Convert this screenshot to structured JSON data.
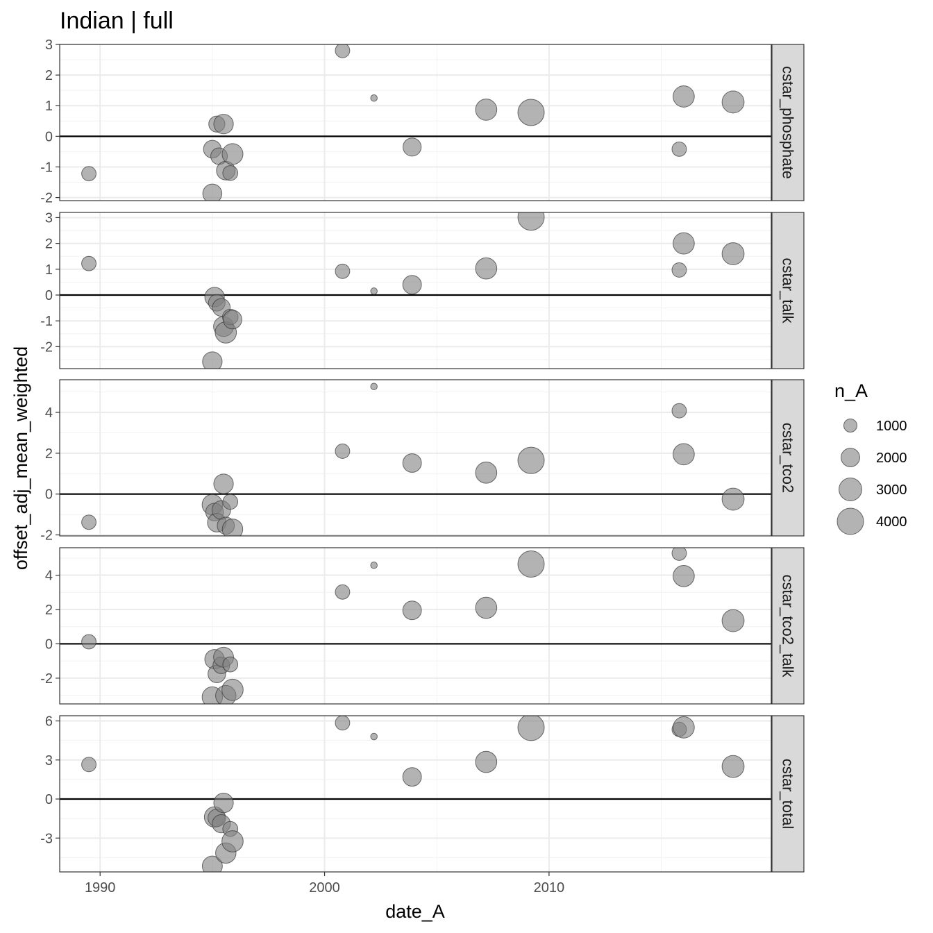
{
  "chart_data": {
    "type": "scatter",
    "title": "Indian | full",
    "xlabel": "date_A",
    "ylabel": "offset_adj_mean_weighted",
    "size_variable": "n_A",
    "xlim": [
      1988.2,
      2019.9
    ],
    "x_ticks": [
      1990,
      2000,
      2010
    ],
    "reference_line_y": 0,
    "point_color": "#808080",
    "point_border": "#333333",
    "point_opacity": 0.6,
    "legend": {
      "title": "n_A",
      "position": "right",
      "entries": [
        {
          "label": "1000",
          "value": 1000
        },
        {
          "label": "2000",
          "value": 2000
        },
        {
          "label": "3000",
          "value": 3000
        },
        {
          "label": "4000",
          "value": 4000
        }
      ]
    },
    "panels": [
      {
        "label": "cstar_phosphate",
        "ylim": [
          -2.1,
          3.0
        ],
        "y_ticks": [
          -2,
          -1,
          0,
          1,
          2,
          3
        ],
        "points": [
          {
            "x": 1989.5,
            "y": -1.22,
            "n": 1200
          },
          {
            "x": 1995.0,
            "y": -1.87,
            "n": 2100
          },
          {
            "x": 1995.0,
            "y": -0.42,
            "n": 1800
          },
          {
            "x": 1995.2,
            "y": 0.4,
            "n": 1500
          },
          {
            "x": 1995.3,
            "y": -0.65,
            "n": 1600
          },
          {
            "x": 1995.5,
            "y": 0.4,
            "n": 2200
          },
          {
            "x": 1995.6,
            "y": -1.12,
            "n": 2000
          },
          {
            "x": 1995.8,
            "y": -1.2,
            "n": 1300
          },
          {
            "x": 1995.9,
            "y": -0.58,
            "n": 2500
          },
          {
            "x": 2000.8,
            "y": 2.8,
            "n": 1200
          },
          {
            "x": 2002.2,
            "y": 1.25,
            "n": 250
          },
          {
            "x": 2003.9,
            "y": -0.35,
            "n": 1900
          },
          {
            "x": 2007.2,
            "y": 0.87,
            "n": 2600
          },
          {
            "x": 2009.2,
            "y": 0.78,
            "n": 4000
          },
          {
            "x": 2015.8,
            "y": -0.42,
            "n": 1200
          },
          {
            "x": 2016.0,
            "y": 1.3,
            "n": 2600
          },
          {
            "x": 2018.2,
            "y": 1.12,
            "n": 2800
          }
        ]
      },
      {
        "label": "cstar_talk",
        "ylim": [
          -2.85,
          3.2
        ],
        "y_ticks": [
          -2,
          -1,
          0,
          1,
          2,
          3
        ],
        "points": [
          {
            "x": 1989.5,
            "y": 1.22,
            "n": 1200
          },
          {
            "x": 1995.0,
            "y": -2.58,
            "n": 2200
          },
          {
            "x": 1995.1,
            "y": -0.08,
            "n": 2200
          },
          {
            "x": 1995.2,
            "y": -0.3,
            "n": 1600
          },
          {
            "x": 1995.4,
            "y": -0.48,
            "n": 1800
          },
          {
            "x": 1995.5,
            "y": -1.22,
            "n": 2300
          },
          {
            "x": 1995.6,
            "y": -1.45,
            "n": 2600
          },
          {
            "x": 1995.8,
            "y": -0.85,
            "n": 1400
          },
          {
            "x": 1995.9,
            "y": -0.95,
            "n": 2000
          },
          {
            "x": 2000.8,
            "y": 0.92,
            "n": 1200
          },
          {
            "x": 2002.2,
            "y": 0.15,
            "n": 250
          },
          {
            "x": 2003.9,
            "y": 0.4,
            "n": 2000
          },
          {
            "x": 2007.2,
            "y": 1.03,
            "n": 2600
          },
          {
            "x": 2009.2,
            "y": 3.02,
            "n": 4000
          },
          {
            "x": 2015.8,
            "y": 0.97,
            "n": 1200
          },
          {
            "x": 2016.0,
            "y": 2.0,
            "n": 2600
          },
          {
            "x": 2018.2,
            "y": 1.6,
            "n": 2800
          }
        ]
      },
      {
        "label": "cstar_tco2",
        "ylim": [
          -2.05,
          5.6
        ],
        "y_ticks": [
          -2,
          0,
          2,
          4
        ],
        "points": [
          {
            "x": 1989.5,
            "y": -1.38,
            "n": 1200
          },
          {
            "x": 1995.0,
            "y": -0.52,
            "n": 2400
          },
          {
            "x": 1995.1,
            "y": -0.88,
            "n": 1800
          },
          {
            "x": 1995.2,
            "y": -1.4,
            "n": 2000
          },
          {
            "x": 1995.4,
            "y": -0.78,
            "n": 2000
          },
          {
            "x": 1995.5,
            "y": 0.5,
            "n": 2200
          },
          {
            "x": 1995.6,
            "y": -1.55,
            "n": 1700
          },
          {
            "x": 1995.8,
            "y": -0.38,
            "n": 1300
          },
          {
            "x": 1995.9,
            "y": -1.72,
            "n": 2400
          },
          {
            "x": 2000.8,
            "y": 2.1,
            "n": 1200
          },
          {
            "x": 2002.2,
            "y": 5.27,
            "n": 250
          },
          {
            "x": 2003.9,
            "y": 1.52,
            "n": 2000
          },
          {
            "x": 2007.2,
            "y": 1.05,
            "n": 2600
          },
          {
            "x": 2009.2,
            "y": 1.65,
            "n": 4000
          },
          {
            "x": 2015.8,
            "y": 4.08,
            "n": 1200
          },
          {
            "x": 2016.0,
            "y": 1.95,
            "n": 2600
          },
          {
            "x": 2018.2,
            "y": -0.25,
            "n": 2800
          }
        ]
      },
      {
        "label": "cstar_tco2_talk",
        "ylim": [
          -3.5,
          5.6
        ],
        "y_ticks": [
          -2,
          0,
          2,
          4
        ],
        "points": [
          {
            "x": 1989.5,
            "y": 0.12,
            "n": 1200
          },
          {
            "x": 1995.0,
            "y": -3.1,
            "n": 2400
          },
          {
            "x": 1995.1,
            "y": -0.9,
            "n": 2200
          },
          {
            "x": 1995.2,
            "y": -1.75,
            "n": 1800
          },
          {
            "x": 1995.4,
            "y": -1.25,
            "n": 1600
          },
          {
            "x": 1995.5,
            "y": -0.78,
            "n": 2300
          },
          {
            "x": 1995.6,
            "y": -3.02,
            "n": 2400
          },
          {
            "x": 1995.8,
            "y": -1.2,
            "n": 1300
          },
          {
            "x": 1995.9,
            "y": -2.68,
            "n": 2600
          },
          {
            "x": 2000.8,
            "y": 3.02,
            "n": 1200
          },
          {
            "x": 2002.2,
            "y": 4.58,
            "n": 250
          },
          {
            "x": 2003.9,
            "y": 1.95,
            "n": 2000
          },
          {
            "x": 2007.2,
            "y": 2.1,
            "n": 2600
          },
          {
            "x": 2009.2,
            "y": 4.65,
            "n": 4000
          },
          {
            "x": 2015.8,
            "y": 5.28,
            "n": 1200
          },
          {
            "x": 2016.0,
            "y": 3.95,
            "n": 2600
          },
          {
            "x": 2018.2,
            "y": 1.35,
            "n": 2800
          }
        ]
      },
      {
        "label": "cstar_total",
        "ylim": [
          -5.6,
          6.4
        ],
        "y_ticks": [
          -3,
          0,
          3,
          6
        ],
        "points": [
          {
            "x": 1989.5,
            "y": 2.65,
            "n": 1200
          },
          {
            "x": 1995.0,
            "y": -5.15,
            "n": 2300
          },
          {
            "x": 1995.1,
            "y": -1.38,
            "n": 2400
          },
          {
            "x": 1995.2,
            "y": -1.45,
            "n": 1800
          },
          {
            "x": 1995.4,
            "y": -1.9,
            "n": 1900
          },
          {
            "x": 1995.5,
            "y": -0.3,
            "n": 2200
          },
          {
            "x": 1995.6,
            "y": -4.15,
            "n": 2400
          },
          {
            "x": 1995.8,
            "y": -2.3,
            "n": 1300
          },
          {
            "x": 1995.9,
            "y": -3.25,
            "n": 2600
          },
          {
            "x": 2000.8,
            "y": 5.85,
            "n": 1200
          },
          {
            "x": 2002.2,
            "y": 4.8,
            "n": 250
          },
          {
            "x": 2003.9,
            "y": 1.7,
            "n": 2000
          },
          {
            "x": 2007.2,
            "y": 2.85,
            "n": 2600
          },
          {
            "x": 2009.2,
            "y": 5.5,
            "n": 4000
          },
          {
            "x": 2015.8,
            "y": 5.35,
            "n": 1200
          },
          {
            "x": 2016.0,
            "y": 5.5,
            "n": 2600
          },
          {
            "x": 2018.2,
            "y": 2.5,
            "n": 2800
          }
        ]
      }
    ]
  }
}
